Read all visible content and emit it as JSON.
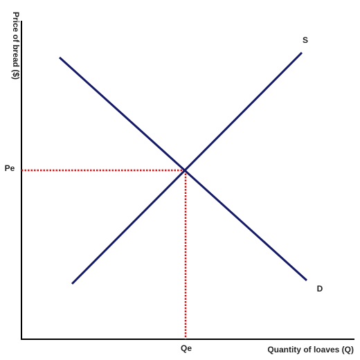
{
  "axes": {
    "x_label": "Quantity of loaves (Q)",
    "y_label": "Price of bread ($)"
  },
  "curves": {
    "supply": {
      "label": "S"
    },
    "demand": {
      "label": "D"
    }
  },
  "equilibrium": {
    "price_label": "Pe",
    "quantity_label": "Qe"
  }
}
